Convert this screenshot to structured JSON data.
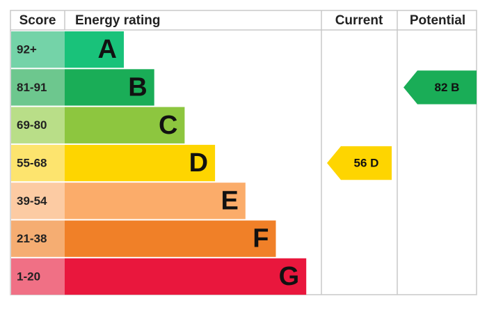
{
  "headers": {
    "score": "Score",
    "rating": "Energy rating",
    "current": "Current",
    "potential": "Potential"
  },
  "bands": [
    {
      "score": "92+",
      "letter": "A",
      "color": "#19c27a",
      "light": "#74d3a8"
    },
    {
      "score": "81-91",
      "letter": "B",
      "color": "#1aad57",
      "light": "#6dc78e"
    },
    {
      "score": "69-80",
      "letter": "C",
      "color": "#8dc63f",
      "light": "#b9de88"
    },
    {
      "score": "55-68",
      "letter": "D",
      "color": "#fed500",
      "light": "#fde46e"
    },
    {
      "score": "39-54",
      "letter": "E",
      "color": "#fbac6a",
      "light": "#fccba3"
    },
    {
      "score": "21-38",
      "letter": "F",
      "color": "#f08028",
      "light": "#f5ad72"
    },
    {
      "score": "1-20",
      "letter": "G",
      "color": "#e9173d",
      "light": "#f07085"
    }
  ],
  "current": {
    "label": "56 D",
    "band": 3,
    "color": "#fed500"
  },
  "potential": {
    "label": "82 B",
    "band": 1,
    "color": "#1aad57"
  }
}
